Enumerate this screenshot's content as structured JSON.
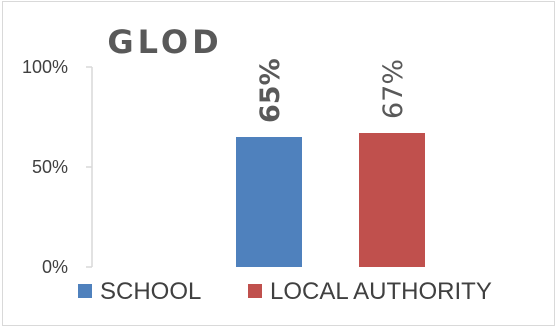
{
  "chart_data": {
    "type": "bar",
    "title": "GLOD",
    "categories": [
      "SCHOOL",
      "LOCAL AUTHORITY"
    ],
    "values": [
      65,
      67
    ],
    "data_labels": [
      "65%",
      "67%"
    ],
    "colors": [
      "#4f81bd",
      "#c0504d"
    ],
    "ylim": [
      0,
      100
    ],
    "yticks": [
      0,
      50,
      100
    ],
    "ytick_labels": [
      "0%",
      "50%",
      "100%"
    ],
    "grid": false,
    "legend_placement": "bottom",
    "data_label_bold": [
      true,
      false
    ]
  }
}
